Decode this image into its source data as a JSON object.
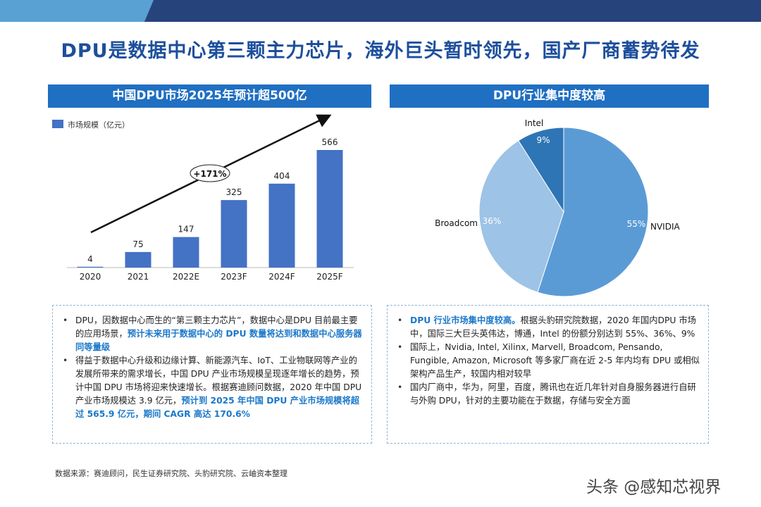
{
  "title": "DPU是数据中心第三颗主力芯片，海外巨头暂时领先，国产厂商蓄势待发",
  "left_section": {
    "header": "中国DPU市场2025年预计超500亿",
    "bullets": [
      [
        {
          "t": "DPU，因数据中心而生的“第三颗主力芯片”，数据中心是DPU 目前最主要的应用场景，",
          "hl": false
        },
        {
          "t": "预计未来用于数据中心的 DPU 数量将达到和数据中心服务器同等量级",
          "hl": true
        }
      ],
      [
        {
          "t": "得益于数据中心升级和边缘计算、新能源汽车、IoT、工业物联网等产业的发展所带来的需求增长，中国 DPU 产业市场规模呈现逐年增长的趋势，预计中国 DPU 市场将迎来快速增长。根据赛迪顾问数据，2020 年中国 DPU 产业市场规模达 3.9 亿元，",
          "hl": false
        },
        {
          "t": "预计到 2025 年中国 DPU 产业市场规模将超过 565.9 亿元，期间 CAGR 高达 170.6%",
          "hl": true
        }
      ]
    ]
  },
  "right_section": {
    "header": "DPU行业集中度较高",
    "bullets": [
      [
        {
          "t": "DPU 行业市场集中度较高。",
          "hl": true
        },
        {
          "t": "根据头豹研究院数据，2020 年国内DPU 市场中，国际三大巨头英伟达，博通，Intel 的份额分别达到 55%、36%、9%",
          "hl": false
        }
      ],
      [
        {
          "t": "国际上，Nvidia, Intel, Xilinx, Marvell, Broadcom, Pensando, Fungible, Amazon, Microsoft 等多家厂商在近 2-5 年内均有 DPU 或相似架构产品生产，较国内相对较早",
          "hl": false
        }
      ],
      [
        {
          "t": "国内厂商中，华为，阿里，百度，腾讯也在近几年针对自身服务器进行自研与外购 DPU，针对的主要功能在于数据，存储与安全方面",
          "hl": false
        }
      ]
    ]
  },
  "chart_data": [
    {
      "type": "bar",
      "categories": [
        "2020",
        "2021",
        "2022E",
        "2023F",
        "2024F",
        "2025F"
      ],
      "series": [
        {
          "name": "市场规模（亿元）",
          "values": [
            4,
            75,
            147,
            325,
            404,
            566
          ]
        }
      ],
      "data_labels": [
        "4",
        "75",
        "147",
        "325",
        "404",
        "566"
      ],
      "annotation": "+171%",
      "legend": "top-left",
      "grid": false,
      "color": "#4472c4"
    },
    {
      "type": "pie",
      "slices": [
        {
          "label": "NVIDIA",
          "value": 55,
          "pct": "55%",
          "color": "#5b9bd5"
        },
        {
          "label": "Broadcom",
          "value": 36,
          "pct": "36%",
          "color": "#9dc3e6"
        },
        {
          "label": "Intel",
          "value": 9,
          "pct": "9%",
          "color": "#2e75b6"
        }
      ]
    }
  ],
  "footer": {
    "source": "数据来源：赛迪顾问，民生证券研究院、头豹研究院、云岫资本整理",
    "watermark": "头条 @感知芯视界"
  }
}
